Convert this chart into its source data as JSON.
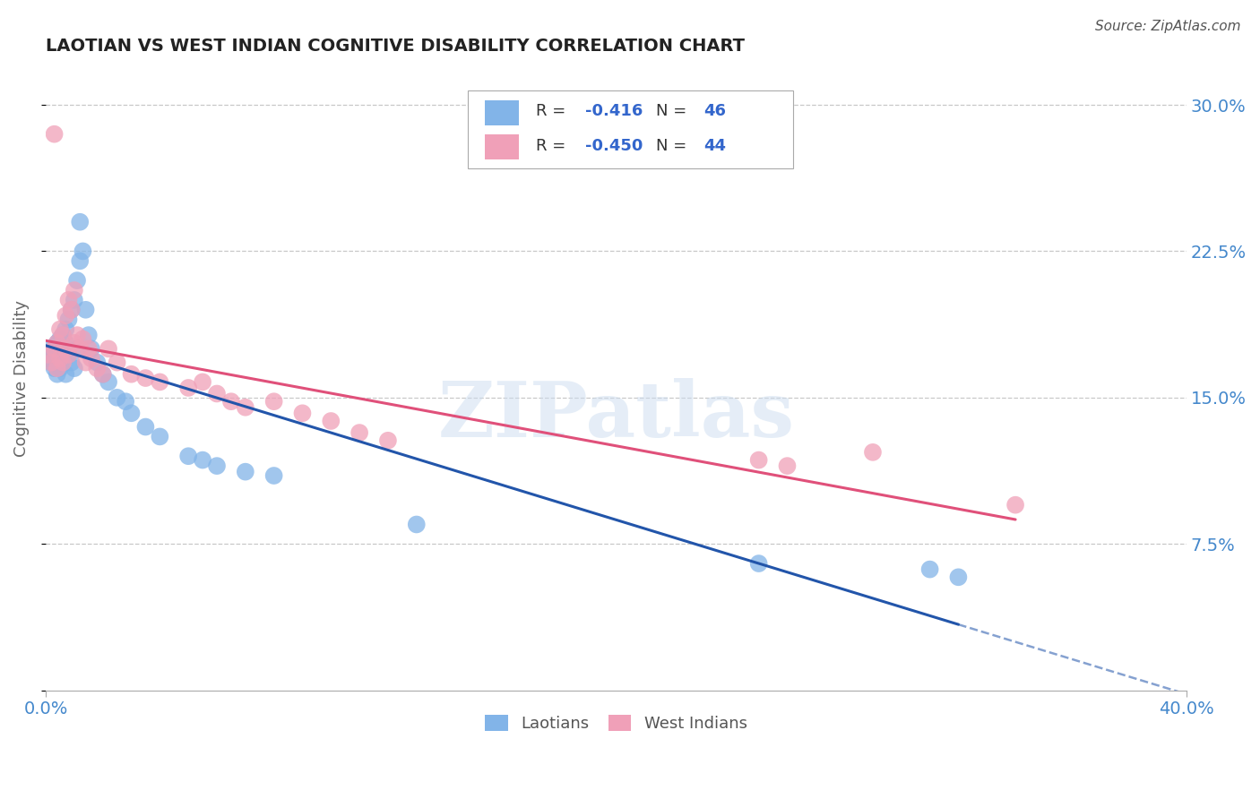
{
  "title": "LAOTIAN VS WEST INDIAN COGNITIVE DISABILITY CORRELATION CHART",
  "source": "Source: ZipAtlas.com",
  "ylabel": "Cognitive Disability",
  "watermark": "ZIPatlas",
  "legend_r_laotian": "-0.416",
  "legend_n_laotian": "46",
  "legend_r_westindian": "-0.450",
  "legend_n_westindian": "44",
  "legend_label_laotian": "Laotians",
  "legend_label_westindian": "West Indians",
  "xlim": [
    0.0,
    0.4
  ],
  "ylim": [
    0.0,
    0.32
  ],
  "ytick_vals": [
    0.0,
    0.075,
    0.15,
    0.225,
    0.3
  ],
  "ytick_labels_right": [
    "",
    "7.5%",
    "15.0%",
    "22.5%",
    "30.0%"
  ],
  "xtick_vals": [
    0.0,
    0.4
  ],
  "xtick_labels": [
    "0.0%",
    "40.0%"
  ],
  "grid_color": "#c8c8c8",
  "background_color": "#ffffff",
  "laotian_color": "#82b4e8",
  "westindian_color": "#f0a0b8",
  "laotian_line_color": "#2255aa",
  "westindian_line_color": "#e0507a",
  "title_color": "#222222",
  "axis_label_color": "#4488cc",
  "r_color": "#3366cc",
  "laotian_x": [
    0.001,
    0.002,
    0.002,
    0.003,
    0.003,
    0.004,
    0.004,
    0.005,
    0.005,
    0.005,
    0.006,
    0.006,
    0.007,
    0.007,
    0.007,
    0.008,
    0.008,
    0.009,
    0.009,
    0.01,
    0.01,
    0.011,
    0.011,
    0.012,
    0.012,
    0.013,
    0.014,
    0.015,
    0.016,
    0.018,
    0.02,
    0.022,
    0.025,
    0.028,
    0.03,
    0.035,
    0.04,
    0.05,
    0.055,
    0.06,
    0.07,
    0.08,
    0.13,
    0.25,
    0.31,
    0.32
  ],
  "laotian_y": [
    0.17,
    0.175,
    0.168,
    0.172,
    0.165,
    0.178,
    0.162,
    0.18,
    0.175,
    0.165,
    0.182,
    0.17,
    0.185,
    0.178,
    0.162,
    0.19,
    0.172,
    0.195,
    0.168,
    0.2,
    0.165,
    0.21,
    0.175,
    0.22,
    0.24,
    0.225,
    0.195,
    0.182,
    0.175,
    0.168,
    0.162,
    0.158,
    0.15,
    0.148,
    0.142,
    0.135,
    0.13,
    0.12,
    0.118,
    0.115,
    0.112,
    0.11,
    0.085,
    0.065,
    0.062,
    0.058
  ],
  "westindian_x": [
    0.001,
    0.002,
    0.003,
    0.003,
    0.004,
    0.004,
    0.005,
    0.005,
    0.006,
    0.006,
    0.007,
    0.007,
    0.008,
    0.008,
    0.009,
    0.01,
    0.01,
    0.011,
    0.012,
    0.013,
    0.014,
    0.015,
    0.016,
    0.018,
    0.02,
    0.022,
    0.025,
    0.03,
    0.035,
    0.04,
    0.05,
    0.055,
    0.06,
    0.065,
    0.07,
    0.08,
    0.09,
    0.1,
    0.11,
    0.12,
    0.25,
    0.26,
    0.29,
    0.34
  ],
  "westindian_y": [
    0.172,
    0.168,
    0.285,
    0.175,
    0.178,
    0.165,
    0.185,
    0.17,
    0.182,
    0.168,
    0.192,
    0.175,
    0.2,
    0.172,
    0.195,
    0.205,
    0.178,
    0.182,
    0.175,
    0.18,
    0.168,
    0.175,
    0.17,
    0.165,
    0.162,
    0.175,
    0.168,
    0.162,
    0.16,
    0.158,
    0.155,
    0.158,
    0.152,
    0.148,
    0.145,
    0.148,
    0.142,
    0.138,
    0.132,
    0.128,
    0.118,
    0.115,
    0.122,
    0.095
  ]
}
